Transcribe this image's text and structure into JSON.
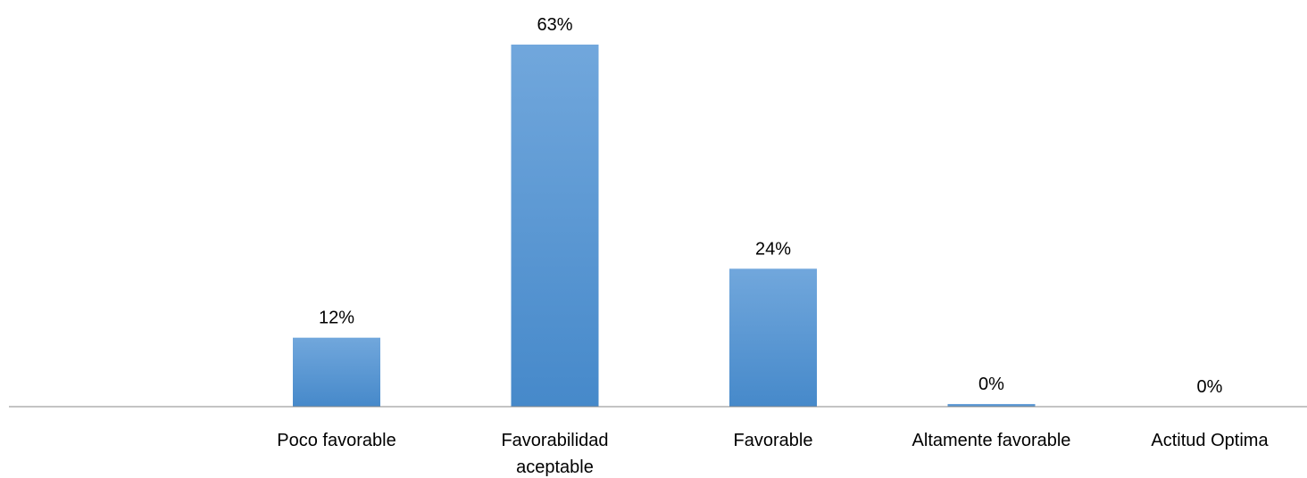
{
  "chart_data": {
    "type": "bar",
    "categories": [
      [
        "Poco favorable"
      ],
      [
        "Favorabilidad",
        "aceptable"
      ],
      [
        "Favorable"
      ],
      [
        "Altamente favorable"
      ],
      [
        "Actitud Optima"
      ]
    ],
    "values": [
      12,
      63,
      24,
      0,
      0
    ],
    "data_labels": [
      "12%",
      "63%",
      "24%",
      "0%",
      "0%"
    ],
    "unit": "%",
    "ylim": [
      0,
      63
    ],
    "grid": false,
    "legend": "none",
    "colors": {
      "bar_top": "#71a7dc",
      "bar_bottom": "#4689ca",
      "axis": "#888888"
    }
  }
}
